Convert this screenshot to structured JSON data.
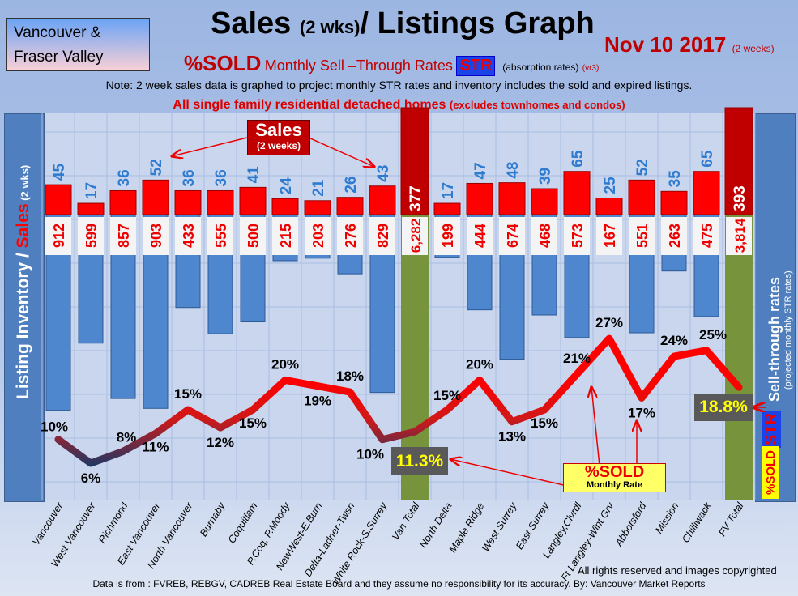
{
  "header": {
    "region_line1": "Vancouver &",
    "region_line2": "Fraser Valley",
    "title_a": "Sales ",
    "title_b": "(2 wks)",
    "title_c": "/ Listings Graph",
    "date": "Nov 10 2017",
    "date_note": "(2 weeks)",
    "subtitle_sold": "%SOLD",
    "subtitle_rates": "Monthly Sell –Through Rates",
    "subtitle_str": "STR",
    "subtitle_absorption": "(absorption rates)",
    "subtitle_version": "(vr3)",
    "note": "Note: 2 week sales data is graphed to project monthly STR rates and inventory includes the sold and expired listings.",
    "scope": "All single family residential detached homes ",
    "scope_note": "(excludes townhomes and condos)"
  },
  "left_axis": {
    "label_a": "Listing Inventory / ",
    "label_b": "Sales",
    "label_c": " (2 wks)"
  },
  "right_axis": {
    "label": "Sell-through rates",
    "label_note": "(projected monthly STR rates)",
    "str": "STR",
    "sold": "%SOLD"
  },
  "annotations": {
    "sales_box": "Sales",
    "sales_box_note": "(2 weeks)",
    "sold_box": "%SOLD",
    "sold_box_note": "Monthly Rate",
    "van_total_str": "11.3%",
    "fv_total_str": "18.8%"
  },
  "footer": {
    "rights": "All rights reserved and  images copyrighted",
    "source": "Data is from : FVREB, REBGV, CADREB Real Estate Board and they assume no responsibility for its accuracy. By: Vancouver Market Reports"
  },
  "colors": {
    "sales": "#ff0000",
    "listings": "#4f87cf",
    "total": "#77933c",
    "line_high": "#ff0000",
    "line_low": "#1f3864",
    "sales_label": "#2e7bcf"
  },
  "chart_data": {
    "type": "bar",
    "title": "Sales (2 wks)/ Listings Graph",
    "categories": [
      "Vancouver",
      "West Vancouver",
      "Richmond",
      "East Vancouver",
      "North Vancouver",
      "Burnaby",
      "Coquitlam",
      "P.Coq, P.Moody",
      "NewWest-E.Burn",
      "Delta-Ladner-Twsn",
      "White Rock-S.Surrey",
      "Van Total",
      "North Delta",
      "Maple Ridge",
      "West Surrey",
      "East Surrey",
      "Langley,Clvrdl",
      "Ft Langley-Wlnt Grv",
      "Abbotsford",
      "Mission",
      "Chilliwack",
      "FV Total"
    ],
    "totals": [
      false,
      false,
      false,
      false,
      false,
      false,
      false,
      false,
      false,
      false,
      false,
      true,
      false,
      false,
      false,
      false,
      false,
      false,
      false,
      false,
      false,
      true
    ],
    "series": [
      {
        "name": "Sales (2 weeks)",
        "type": "bar",
        "values": [
          45,
          17,
          36,
          52,
          36,
          36,
          41,
          24,
          21,
          26,
          43,
          377,
          17,
          47,
          48,
          39,
          65,
          25,
          52,
          35,
          65,
          393
        ]
      },
      {
        "name": "Listing Inventory",
        "type": "bar",
        "values": [
          912,
          599,
          857,
          903,
          433,
          555,
          500,
          215,
          203,
          276,
          829,
          6282,
          199,
          444,
          674,
          468,
          573,
          167,
          551,
          263,
          475,
          3814
        ],
        "labels": [
          "912",
          "599",
          "857",
          "903",
          "433",
          "555",
          "500",
          "215",
          "203",
          "276",
          "829",
          "6,282",
          "199",
          "444",
          "674",
          "468",
          "573",
          "167",
          "551",
          "263",
          "475",
          "3,814"
        ]
      },
      {
        "name": "%SOLD Monthly Sell-Through Rate",
        "type": "line",
        "values": [
          10,
          6,
          8,
          11,
          15,
          12,
          15,
          20,
          19,
          18,
          10,
          11.3,
          15,
          20,
          13,
          15,
          21,
          27,
          17,
          24,
          25,
          18.8
        ],
        "labels": [
          "10%",
          "6%",
          "8%",
          "11%",
          "15%",
          "12%",
          "15%",
          "20%",
          "19%",
          "18%",
          "10%",
          "",
          "15%",
          "20%",
          "13%",
          "15%",
          "21%",
          "27%",
          "17%",
          "24%",
          "25%",
          ""
        ]
      }
    ],
    "xlabel": "",
    "ylabel": "Listing Inventory / Sales (2 wks)",
    "y2label": "Sell-through rates",
    "grid": true
  }
}
